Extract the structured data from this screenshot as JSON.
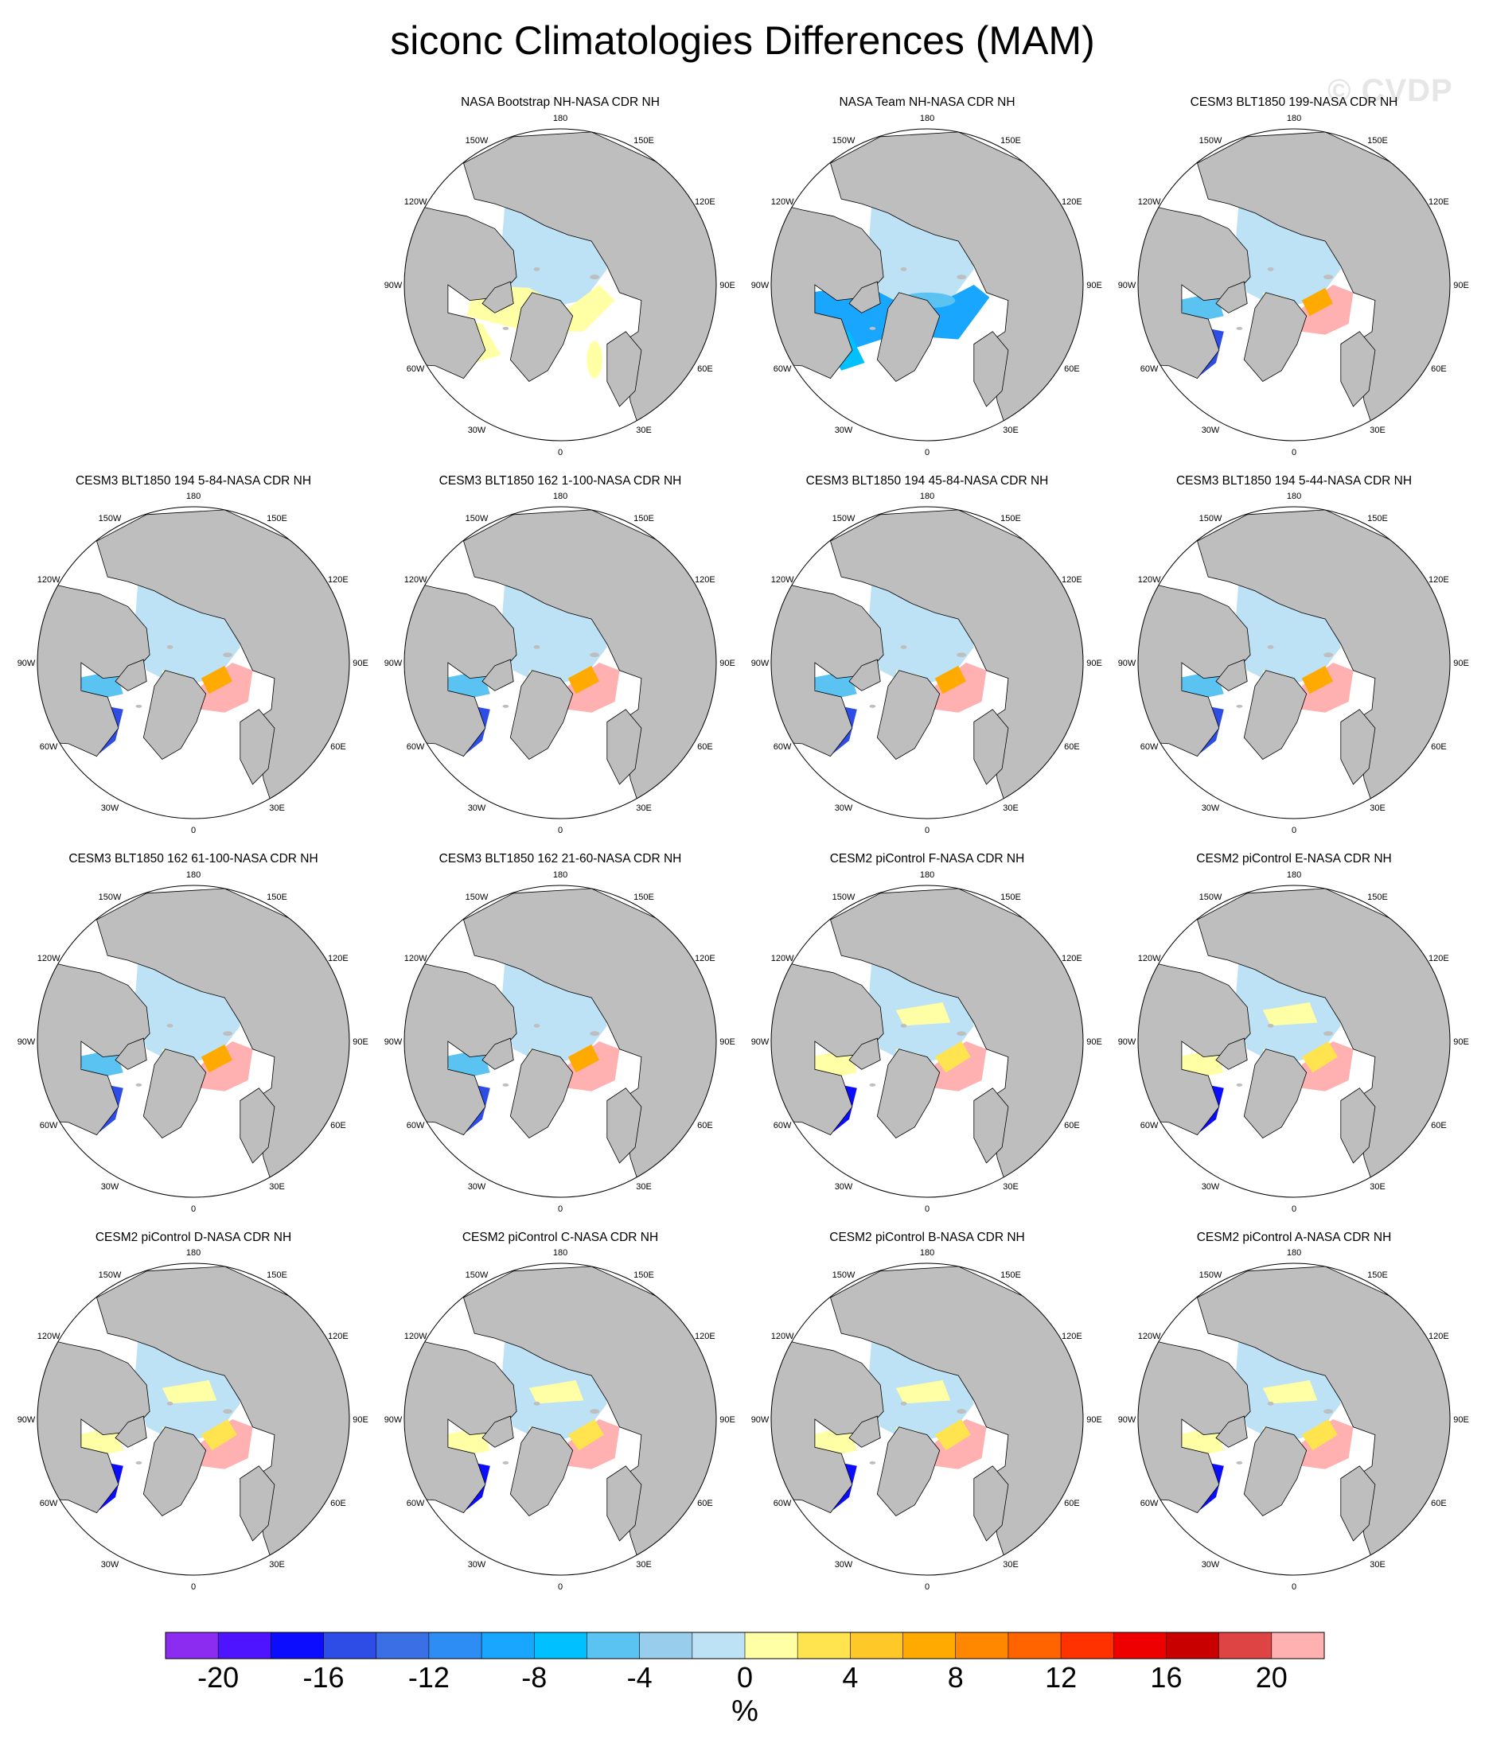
{
  "title": "siconc Climatologies Differences (MAM)",
  "watermark": "© CVDP",
  "units": "%",
  "colors": {
    "land": "#bebebe",
    "ocean_background": "#ffffff",
    "coast": "#000000"
  },
  "longitude_labels": [
    "180",
    "150E",
    "120E",
    "90E",
    "60E",
    "30E",
    "0",
    "30W",
    "60W",
    "90W",
    "120W",
    "150W"
  ],
  "colorbar": {
    "colors": [
      "#8c2cf0",
      "#4f14ff",
      "#0c0cff",
      "#2e4ce6",
      "#3a6fe6",
      "#2d8df5",
      "#19a6ff",
      "#00c0ff",
      "#5ac3f2",
      "#98ceeb",
      "#bde1f5",
      "#ffffa5",
      "#ffe44f",
      "#ffc829",
      "#ffaa00",
      "#ff8800",
      "#ff6400",
      "#ff3200",
      "#ef0000",
      "#c80000",
      "#de4444",
      "#ffb0b0"
    ],
    "tick_labels": [
      "-20",
      "-16",
      "-12",
      "-8",
      "-4",
      "0",
      "4",
      "8",
      "12",
      "16",
      "20"
    ]
  },
  "panels": [
    {
      "title": "NASA Bootstrap NH-NASA CDR NH",
      "pattern": "bootstrap"
    },
    {
      "title": "NASA Team NH-NASA CDR NH",
      "pattern": "team"
    },
    {
      "title": "CESM3 BLT1850 199-NASA CDR NH",
      "pattern": "cesm3"
    },
    {
      "title": "CESM3 BLT1850 194 5-84-NASA CDR NH",
      "pattern": "cesm3"
    },
    {
      "title": "CESM3 BLT1850 162 1-100-NASA CDR NH",
      "pattern": "cesm3"
    },
    {
      "title": "CESM3 BLT1850 194 45-84-NASA CDR NH",
      "pattern": "cesm3"
    },
    {
      "title": "CESM3 BLT1850 194 5-44-NASA CDR NH",
      "pattern": "cesm3"
    },
    {
      "title": "CESM3 BLT1850 162 61-100-NASA CDR NH",
      "pattern": "cesm3"
    },
    {
      "title": "CESM3 BLT1850 162 21-60-NASA CDR NH",
      "pattern": "cesm3"
    },
    {
      "title": "CESM2 piControl F-NASA CDR NH",
      "pattern": "cesm2"
    },
    {
      "title": "CESM2 piControl E-NASA CDR NH",
      "pattern": "cesm2"
    },
    {
      "title": "CESM2 piControl D-NASA CDR NH",
      "pattern": "cesm2"
    },
    {
      "title": "CESM2 piControl C-NASA CDR NH",
      "pattern": "cesm2"
    },
    {
      "title": "CESM2 piControl B-NASA CDR NH",
      "pattern": "cesm2"
    },
    {
      "title": "CESM2 piControl A-NASA CDR NH",
      "pattern": "cesm2"
    }
  ]
}
